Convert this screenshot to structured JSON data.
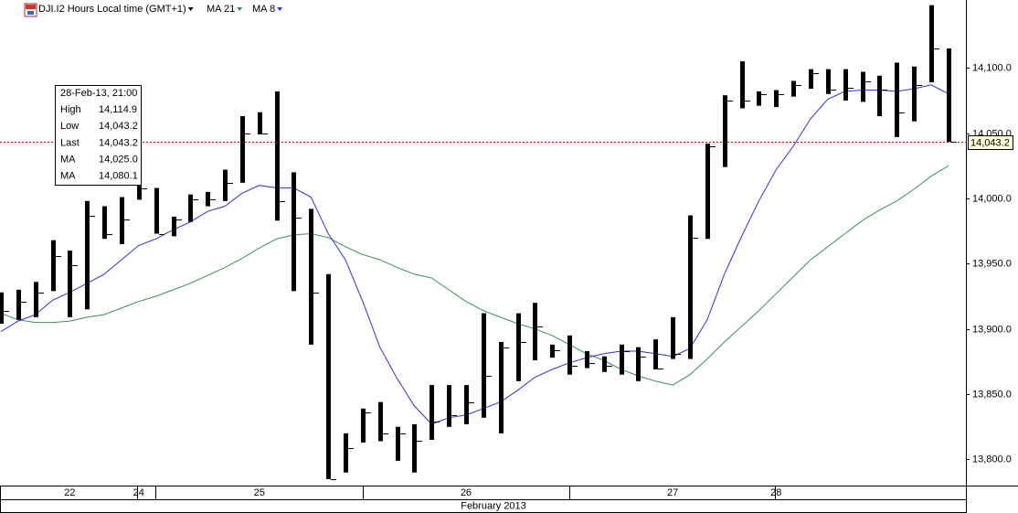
{
  "chart_data": {
    "type": "ohlc",
    "title": "DJI.I2 Hours Local time (GMT+1)",
    "x_axis_label": "February 2013",
    "categories": [
      null,
      null,
      null,
      null,
      "22",
      null,
      null,
      null,
      "24",
      null,
      null,
      null,
      null,
      null,
      null,
      "25",
      null,
      null,
      null,
      null,
      null,
      null,
      null,
      null,
      null,
      null,
      null,
      "26",
      null,
      null,
      null,
      null,
      null,
      null,
      null,
      null,
      null,
      null,
      null,
      "27",
      null,
      null,
      null,
      null,
      null,
      "28",
      null,
      null,
      null,
      null,
      null,
      null,
      null,
      null,
      null,
      null
    ],
    "high": [
      13928,
      13930,
      13936,
      13968,
      13960,
      13998,
      13994,
      14001,
      14015,
      14008,
      13986,
      14003,
      14005,
      14022,
      14063,
      14066,
      14082,
      14020,
      13992,
      13942,
      13820,
      13839,
      13844,
      13825,
      13827,
      13857,
      13857,
      13857,
      13912,
      13890,
      13912,
      13920,
      13888,
      13895,
      13883,
      13879,
      13888,
      13886,
      13892,
      13909,
      13987,
      14042,
      14079,
      14105,
      14082,
      14083,
      14090,
      14099,
      14099,
      14099,
      14097,
      14094,
      14104,
      14101,
      14148,
      14114.9
    ],
    "low": [
      13904,
      13907,
      13909,
      13929,
      13909,
      13915,
      13969,
      13965,
      13999,
      13973,
      13971,
      13982,
      13994,
      13998,
      14012,
      14049,
      13983,
      13929,
      13888,
      13785,
      13790,
      13813,
      13814,
      13799,
      13790,
      13815,
      13825,
      13827,
      13832,
      13820,
      13860,
      13876,
      13878,
      13865,
      13870,
      13867,
      13865,
      13860,
      13869,
      13877,
      13877,
      13969,
      14024,
      14069,
      14071,
      14070,
      14078,
      14084,
      14080,
      14075,
      14074,
      14063,
      14047,
      14059,
      14089,
      14043.2
    ],
    "close": [
      13914,
      13921,
      13928,
      13956,
      13949,
      13987,
      13973,
      13984,
      14008,
      13973,
      13984,
      13999,
      13999,
      14012,
      14050,
      14050,
      13998,
      13985,
      13928,
      13785,
      13809,
      13836,
      13820,
      13820,
      13814,
      13829,
      13834,
      13844,
      13864,
      13886,
      13890,
      13902,
      13884,
      13872,
      13874,
      13872,
      13883,
      13879,
      13870,
      13881,
      13970,
      14040,
      14075,
      14075,
      14080,
      14080,
      14087,
      14096,
      14083,
      14085,
      14090,
      14083,
      14066,
      14087,
      14115,
      14043.2
    ],
    "bar_color": "#000000",
    "series": [
      {
        "name": "MA 21",
        "color": "#3a8f5c",
        "values": [
          13912,
          13907,
          13905,
          13905,
          13906,
          13909,
          13911,
          13916,
          13921,
          13925,
          13930,
          13935,
          13941,
          13947,
          13954,
          13962,
          13969,
          13972,
          13973,
          13970,
          13963,
          13957,
          13953,
          13947,
          13942,
          13939,
          13930,
          13921,
          13914,
          13909,
          13904,
          13900,
          13895,
          13888,
          13881,
          13876,
          13869,
          13864,
          13860,
          13857,
          13865,
          13877,
          13890,
          13902,
          13914,
          13927,
          13940,
          13953,
          13963,
          13973,
          13983,
          13991,
          13998,
          14007,
          14017,
          14025.0
        ]
      },
      {
        "name": "MA 8",
        "color": "#3030e0",
        "values": [
          13898,
          13906,
          13911,
          13922,
          13928,
          13935,
          13942,
          13953,
          13964,
          13969,
          13976,
          13982,
          13990,
          13994,
          14004,
          14010,
          14008,
          14008,
          14001,
          13973,
          13953,
          13921,
          13886,
          13862,
          13841,
          13827,
          13832,
          13834,
          13839,
          13844,
          13853,
          13863,
          13869,
          13874,
          13878,
          13881,
          13883,
          13883,
          13881,
          13879,
          13885,
          13907,
          13942,
          13971,
          13998,
          14022,
          14040,
          14061,
          14076,
          14082,
          14083,
          14083,
          14082,
          14084,
          14087,
          14080.1
        ]
      }
    ],
    "ylim": [
      13780,
      14152
    ],
    "yticks": [
      {
        "value": 13800,
        "label": "13,800.0"
      },
      {
        "value": 13850,
        "label": "13,850.0"
      },
      {
        "value": 13900,
        "label": "13,900.0"
      },
      {
        "value": 13950,
        "label": "13,950.0"
      },
      {
        "value": 14000,
        "label": "14,000.0"
      },
      {
        "value": 14050,
        "label": "14,050.0"
      },
      {
        "value": 14100,
        "label": "14,100.0"
      }
    ],
    "last": {
      "value": 14043.2,
      "label": "14,043.2",
      "color": "#cc0000"
    },
    "tooltip": {
      "time": "28-Feb-13, 21:00",
      "rows": [
        {
          "label": "High",
          "value": "14,114.9"
        },
        {
          "label": "Low",
          "value": "14,043.2"
        },
        {
          "label": "Last",
          "value": "14,043.2"
        },
        {
          "label": "MA",
          "value": "14,025.0",
          "series": 0
        },
        {
          "label": "MA",
          "value": "14,080.1",
          "series": 1
        }
      ]
    }
  }
}
